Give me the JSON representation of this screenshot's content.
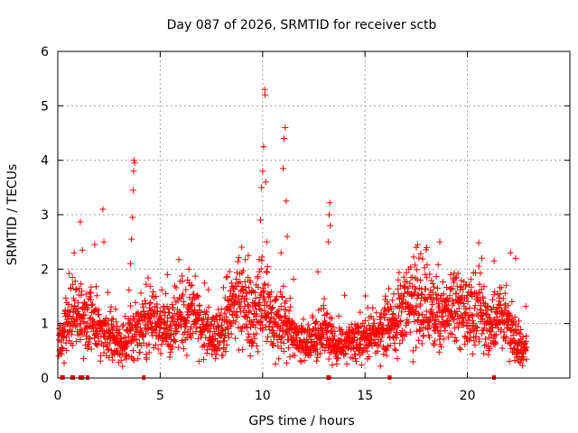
{
  "chart_data": {
    "type": "scatter",
    "title": "Day 087 of 2026, SRMTID for receiver sctb",
    "xlabel": "GPS time / hours",
    "ylabel": "SRMTID / TECUs",
    "xlim": [
      0,
      25
    ],
    "ylim": [
      0,
      6
    ],
    "xticks": [
      0,
      5,
      10,
      15,
      20
    ],
    "yticks": [
      0,
      1,
      2,
      3,
      4,
      5,
      6
    ],
    "grid": true,
    "marker": "+",
    "series_color": "#ff0000",
    "sampling_interval_hours": 0.01,
    "x_end": 22.9,
    "noise_seed": 87,
    "trend": [
      [
        0.0,
        0.6
      ],
      [
        0.5,
        1.0
      ],
      [
        1.0,
        1.2
      ],
      [
        1.5,
        1.1
      ],
      [
        2.0,
        0.9
      ],
      [
        2.5,
        0.8
      ],
      [
        3.0,
        0.6
      ],
      [
        3.5,
        0.8
      ],
      [
        4.0,
        0.9
      ],
      [
        4.5,
        1.1
      ],
      [
        5.0,
        1.0
      ],
      [
        5.5,
        0.9
      ],
      [
        6.0,
        1.1
      ],
      [
        6.5,
        1.2
      ],
      [
        7.0,
        1.0
      ],
      [
        7.5,
        0.8
      ],
      [
        8.0,
        0.9
      ],
      [
        8.5,
        1.3
      ],
      [
        9.0,
        1.5
      ],
      [
        9.5,
        1.2
      ],
      [
        10.0,
        1.6
      ],
      [
        10.5,
        0.9
      ],
      [
        11.0,
        1.0
      ],
      [
        11.5,
        0.8
      ],
      [
        12.0,
        0.6
      ],
      [
        12.5,
        0.7
      ],
      [
        13.0,
        0.9
      ],
      [
        13.5,
        0.6
      ],
      [
        14.0,
        0.6
      ],
      [
        14.5,
        0.7
      ],
      [
        15.0,
        0.7
      ],
      [
        15.5,
        0.8
      ],
      [
        16.0,
        0.9
      ],
      [
        16.5,
        1.0
      ],
      [
        17.0,
        1.3
      ],
      [
        17.5,
        1.5
      ],
      [
        18.0,
        1.4
      ],
      [
        18.5,
        1.2
      ],
      [
        19.0,
        1.1
      ],
      [
        19.5,
        1.3
      ],
      [
        20.0,
        1.2
      ],
      [
        20.5,
        1.3
      ],
      [
        21.0,
        0.9
      ],
      [
        21.5,
        1.1
      ],
      [
        22.0,
        1.0
      ],
      [
        22.5,
        0.6
      ],
      [
        22.9,
        0.5
      ]
    ],
    "spikes": [
      [
        0.55,
        1.92
      ],
      [
        0.8,
        2.3
      ],
      [
        1.1,
        2.87
      ],
      [
        1.2,
        2.35
      ],
      [
        1.8,
        2.45
      ],
      [
        2.2,
        3.1
      ],
      [
        2.25,
        2.5
      ],
      [
        3.55,
        2.1
      ],
      [
        3.6,
        2.55
      ],
      [
        3.65,
        2.95
      ],
      [
        3.68,
        3.45
      ],
      [
        3.7,
        3.8
      ],
      [
        3.72,
        4.0
      ],
      [
        3.75,
        3.95
      ],
      [
        5.35,
        1.9
      ],
      [
        6.4,
        2.0
      ],
      [
        9.3,
        2.25
      ],
      [
        9.9,
        2.9
      ],
      [
        9.95,
        3.5
      ],
      [
        10.0,
        3.8
      ],
      [
        10.05,
        4.25
      ],
      [
        10.1,
        5.3
      ],
      [
        10.12,
        5.2
      ],
      [
        10.15,
        3.6
      ],
      [
        10.2,
        2.5
      ],
      [
        10.9,
        2.3
      ],
      [
        11.0,
        3.85
      ],
      [
        11.05,
        4.4
      ],
      [
        11.1,
        4.6
      ],
      [
        11.15,
        3.25
      ],
      [
        11.2,
        2.6
      ],
      [
        12.7,
        1.95
      ],
      [
        13.2,
        2.5
      ],
      [
        13.25,
        3.0
      ],
      [
        13.28,
        3.22
      ],
      [
        13.3,
        2.8
      ],
      [
        17.5,
        2.4
      ],
      [
        18.65,
        2.5
      ],
      [
        20.7,
        2.2
      ],
      [
        21.3,
        2.15
      ],
      [
        22.1,
        2.3
      ],
      [
        22.35,
        2.2
      ]
    ],
    "zero_values_x": [
      0.2,
      0.25,
      0.7,
      0.75,
      1.1,
      1.2,
      1.45,
      4.2,
      13.2,
      13.25,
      16.2,
      21.3
    ]
  }
}
